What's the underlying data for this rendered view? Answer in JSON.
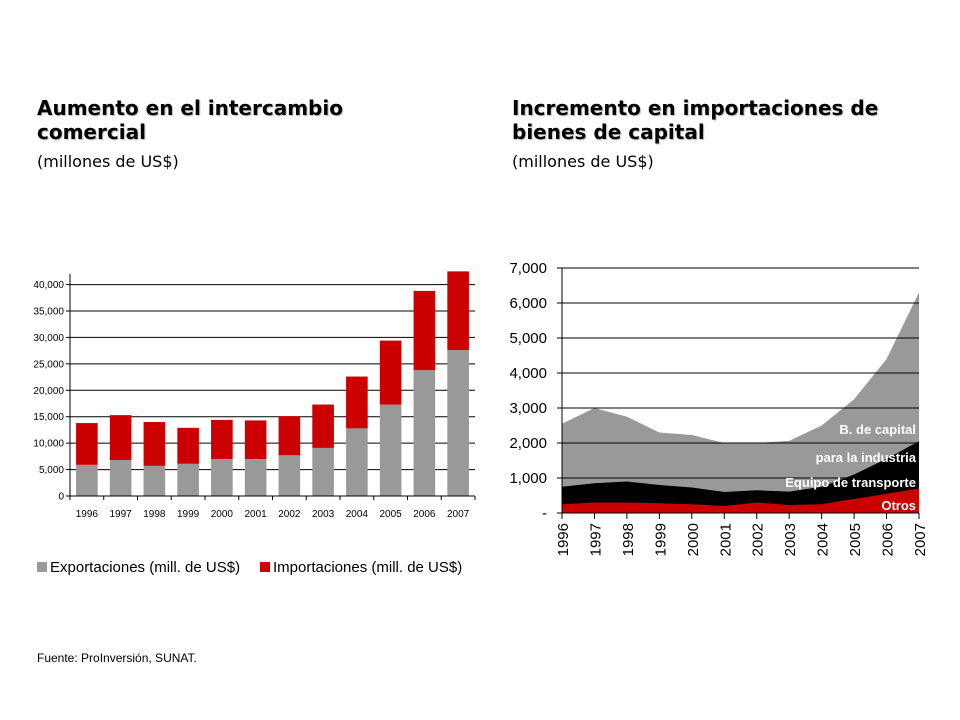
{
  "left_panel": {
    "title": "Aumento en el intercambio comercial",
    "subtitle": "(millones de US$)"
  },
  "right_panel": {
    "title": "Incremento en importaciones de bienes de capital",
    "subtitle": "(millones de US$)"
  },
  "source": "Fuente: ProInversión, SUNAT.",
  "chart_data": [
    {
      "type": "bar",
      "stacked": true,
      "categories": [
        "1996",
        "1997",
        "1998",
        "1999",
        "2000",
        "2001",
        "2002",
        "2003",
        "2004",
        "2005",
        "2006",
        "2007"
      ],
      "series": [
        {
          "name": "Exportaciones (mill. de US$)",
          "color": "#999999",
          "values": [
            5900,
            6800,
            5700,
            6100,
            7000,
            7000,
            7700,
            9100,
            12800,
            17300,
            23800,
            27600
          ]
        },
        {
          "name": "Importaciones (mill. de US$)",
          "color": "#cc0000",
          "values": [
            7900,
            8500,
            8300,
            6800,
            7400,
            7300,
            7400,
            8200,
            9800,
            12100,
            15000,
            14900
          ]
        }
      ],
      "ylim": [
        0,
        42000
      ],
      "yticks": [
        0,
        5000,
        10000,
        15000,
        20000,
        25000,
        30000,
        35000,
        40000
      ],
      "ytick_labels": [
        "0",
        "5,000",
        "10,000",
        "15,000",
        "20,000",
        "25,000",
        "30,000",
        "35,000",
        "40,000"
      ],
      "grid": true,
      "legend_position": "bottom"
    },
    {
      "type": "area",
      "stacked": true,
      "x": [
        "1996",
        "1997",
        "1998",
        "1999",
        "2000",
        "2001",
        "2002",
        "2003",
        "2004",
        "2005",
        "2006",
        "2007"
      ],
      "series": [
        {
          "name": "Otros",
          "color": "#cc0000",
          "values": [
            250,
            300,
            300,
            280,
            250,
            200,
            300,
            230,
            250,
            400,
            550,
            700
          ]
        },
        {
          "name": "Equipo de transporte",
          "color": "#000000",
          "values": [
            500,
            550,
            600,
            520,
            480,
            400,
            350,
            380,
            500,
            700,
            1000,
            1350
          ]
        },
        {
          "name": "B. de capital para la industria",
          "color": "#999999",
          "values": [
            1800,
            2150,
            1850,
            1500,
            1500,
            1400,
            1350,
            1450,
            1750,
            2150,
            2850,
            4250
          ]
        }
      ],
      "area_labels": [
        "B. de capital",
        "para la industria",
        "Equipo de transporte",
        "Otros"
      ],
      "ylim": [
        0,
        7000
      ],
      "yticks": [
        0,
        1000,
        2000,
        3000,
        4000,
        5000,
        6000,
        7000
      ],
      "ytick_labels": [
        "-",
        "1,000",
        "2,000",
        "3,000",
        "4,000",
        "5,000",
        "6,000",
        "7,000"
      ],
      "grid": true
    }
  ]
}
